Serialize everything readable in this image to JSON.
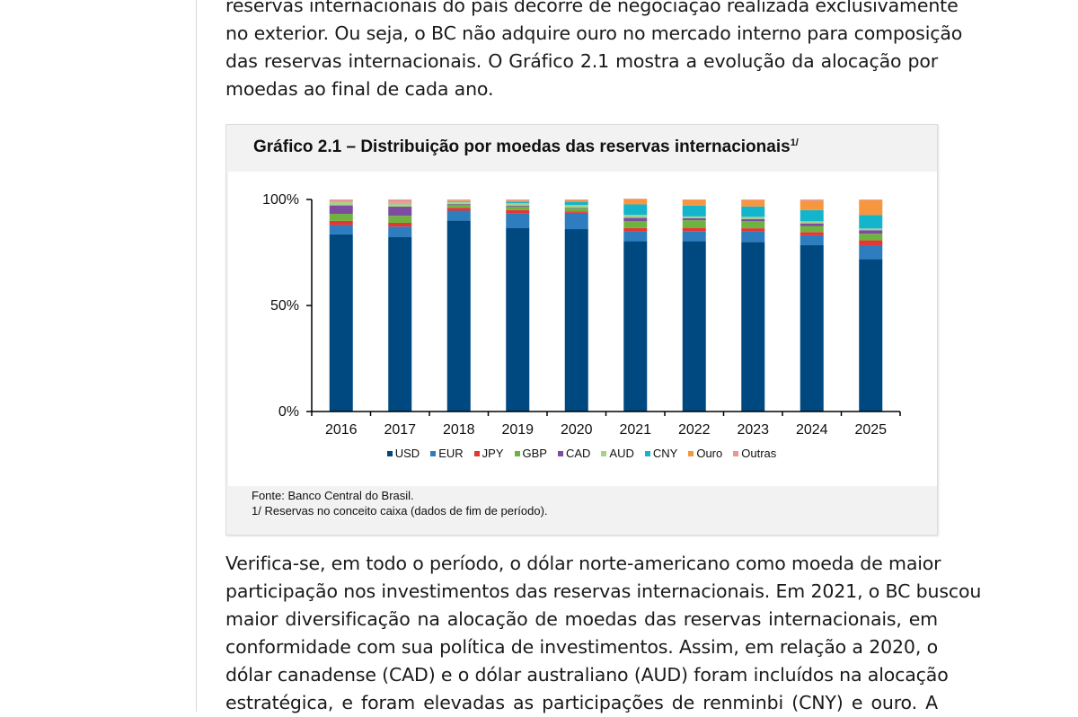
{
  "document": {
    "paragraph_top_lines": [
      "reservas internacionais do país decorre de negociação realizada exclusivamente",
      "no exterior. Ou seja, o BC não adquire ouro no mercado interno para composição",
      "das reservas internacionais. O Gráfico 2.1 mostra a evolução da alocação por",
      "moedas ao final de cada ano."
    ],
    "paragraph_bottom_lines": [
      "Verifica-se, em todo o período, o dólar norte-americano como moeda de maior",
      "participação nos investimentos das reservas internacionais. Em 2021, o BC buscou",
      "maior diversificação na alocação de moedas das reservas internacionais, em",
      "conformidade com sua política de investimentos. Assim, em relação a 2020, o",
      "dólar canadense (CAD) e o dólar australiano (AUD) foram incluídos na alocação",
      "estratégica, e foram elevadas as participações de renminbi (CNY) e ouro. A"
    ]
  },
  "chart_box": {
    "title": "Gráfico 2.1 – Distribuição por moedas das reservas internacionais",
    "title_note": "1/",
    "source": "Fonte: Banco Central do Brasil.",
    "footnote": "1/ Reservas no conceito caixa (dados de fim de período)."
  },
  "chart_data": {
    "type": "bar",
    "stacked": true,
    "categories": [
      "2016",
      "2017",
      "2018",
      "2019",
      "2020",
      "2021",
      "2022",
      "2023",
      "2024",
      "2025"
    ],
    "ylim": [
      0,
      100
    ],
    "yticks": [
      "0%",
      "50%",
      "100%"
    ],
    "legend_position": "bottom",
    "series": [
      {
        "name": "USD",
        "color": "#004880",
        "values": [
          83.5,
          82.2,
          90.0,
          86.6,
          86.0,
          80.4,
          80.4,
          80.0,
          78.4,
          71.8
        ]
      },
      {
        "name": "EUR",
        "color": "#2E7EBF",
        "values": [
          4.4,
          5.0,
          4.7,
          7.0,
          7.7,
          4.6,
          4.7,
          5.0,
          4.7,
          6.6
        ]
      },
      {
        "name": "JPY",
        "color": "#E63535",
        "values": [
          2.0,
          1.8,
          1.4,
          1.4,
          0.6,
          1.5,
          1.5,
          1.4,
          1.5,
          2.3
        ]
      },
      {
        "name": "GBP",
        "color": "#6FB33F",
        "values": [
          3.3,
          3.3,
          1.5,
          1.6,
          1.5,
          3.2,
          3.6,
          3.3,
          2.9,
          3.1
        ]
      },
      {
        "name": "CAD",
        "color": "#7C4D9F",
        "values": [
          4.0,
          4.3,
          0.3,
          0.4,
          0.3,
          1.6,
          0.9,
          1.1,
          1.2,
          1.7
        ]
      },
      {
        "name": "AUD",
        "color": "#A8D08D",
        "values": [
          1.5,
          1.5,
          1.0,
          1.2,
          1.3,
          1.4,
          0.9,
          1.0,
          1.0,
          0.8
        ]
      },
      {
        "name": "CNY",
        "color": "#12B5CB",
        "values": [
          0.0,
          0.0,
          0.3,
          0.7,
          1.5,
          5.0,
          5.1,
          4.9,
          5.3,
          6.4
        ]
      },
      {
        "name": "Ouro",
        "color": "#F7963E",
        "values": [
          0.3,
          0.3,
          0.2,
          0.5,
          0.7,
          2.4,
          2.7,
          2.9,
          4.4,
          7.0
        ]
      },
      {
        "name": "Outras",
        "color": "#E59896",
        "values": [
          1.0,
          1.6,
          0.6,
          0.6,
          0.4,
          0.3,
          0.2,
          0.4,
          0.6,
          0.3
        ]
      }
    ]
  }
}
